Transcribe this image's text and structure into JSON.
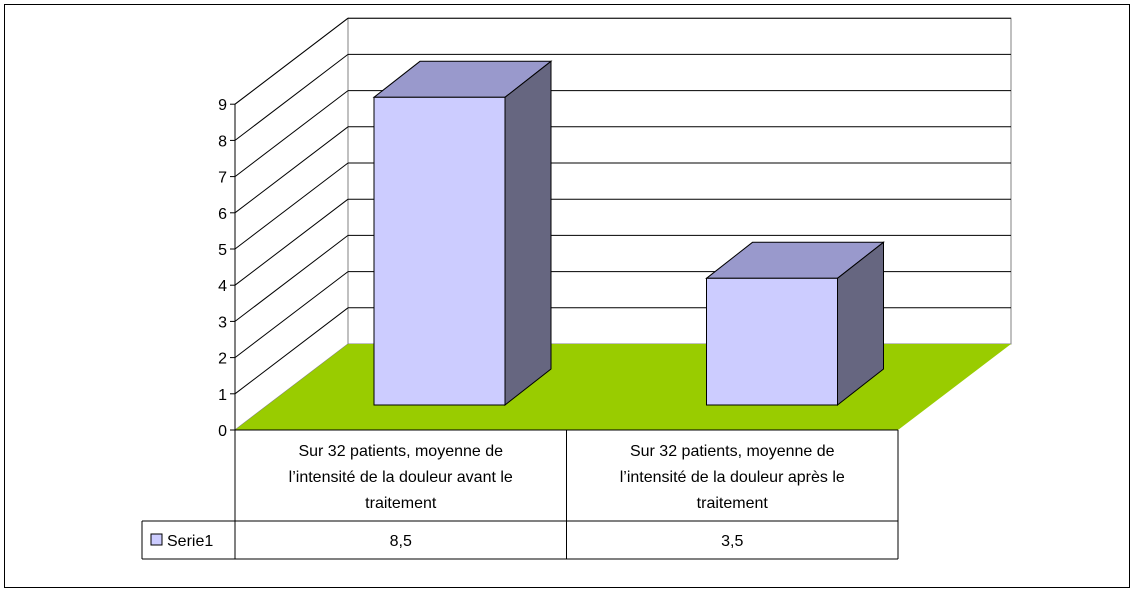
{
  "chart_data": {
    "type": "bar",
    "title": "",
    "xlabel": "",
    "ylabel": "",
    "ylim": [
      0,
      9
    ],
    "yticks": [
      0,
      1,
      2,
      3,
      4,
      5,
      6,
      7,
      8,
      9
    ],
    "grid": true,
    "legend": "data-table",
    "categories": [
      "Sur 32 patients, moyenne de l’intensité de la douleur avant le traitement",
      "Sur 32 patients, moyenne de l’intensité de la douleur après le traitement"
    ],
    "category_lines": [
      [
        "Sur 32 patients, moyenne de",
        "l’intensité de la douleur avant le",
        "traitement"
      ],
      [
        "Sur 32 patients, moyenne de",
        "l’intensité de la douleur après le",
        "traitement"
      ]
    ],
    "series": [
      {
        "name": "Serie1",
        "values": [
          8.5,
          3.5
        ],
        "value_labels": [
          "8,5",
          "3,5"
        ]
      }
    ],
    "colors": {
      "bar_front": "#ccccff",
      "bar_top": "#9999cc",
      "bar_side": "#666680",
      "floor": "#99cc00",
      "gridline": "#000000",
      "walls": "#ffffff"
    }
  }
}
